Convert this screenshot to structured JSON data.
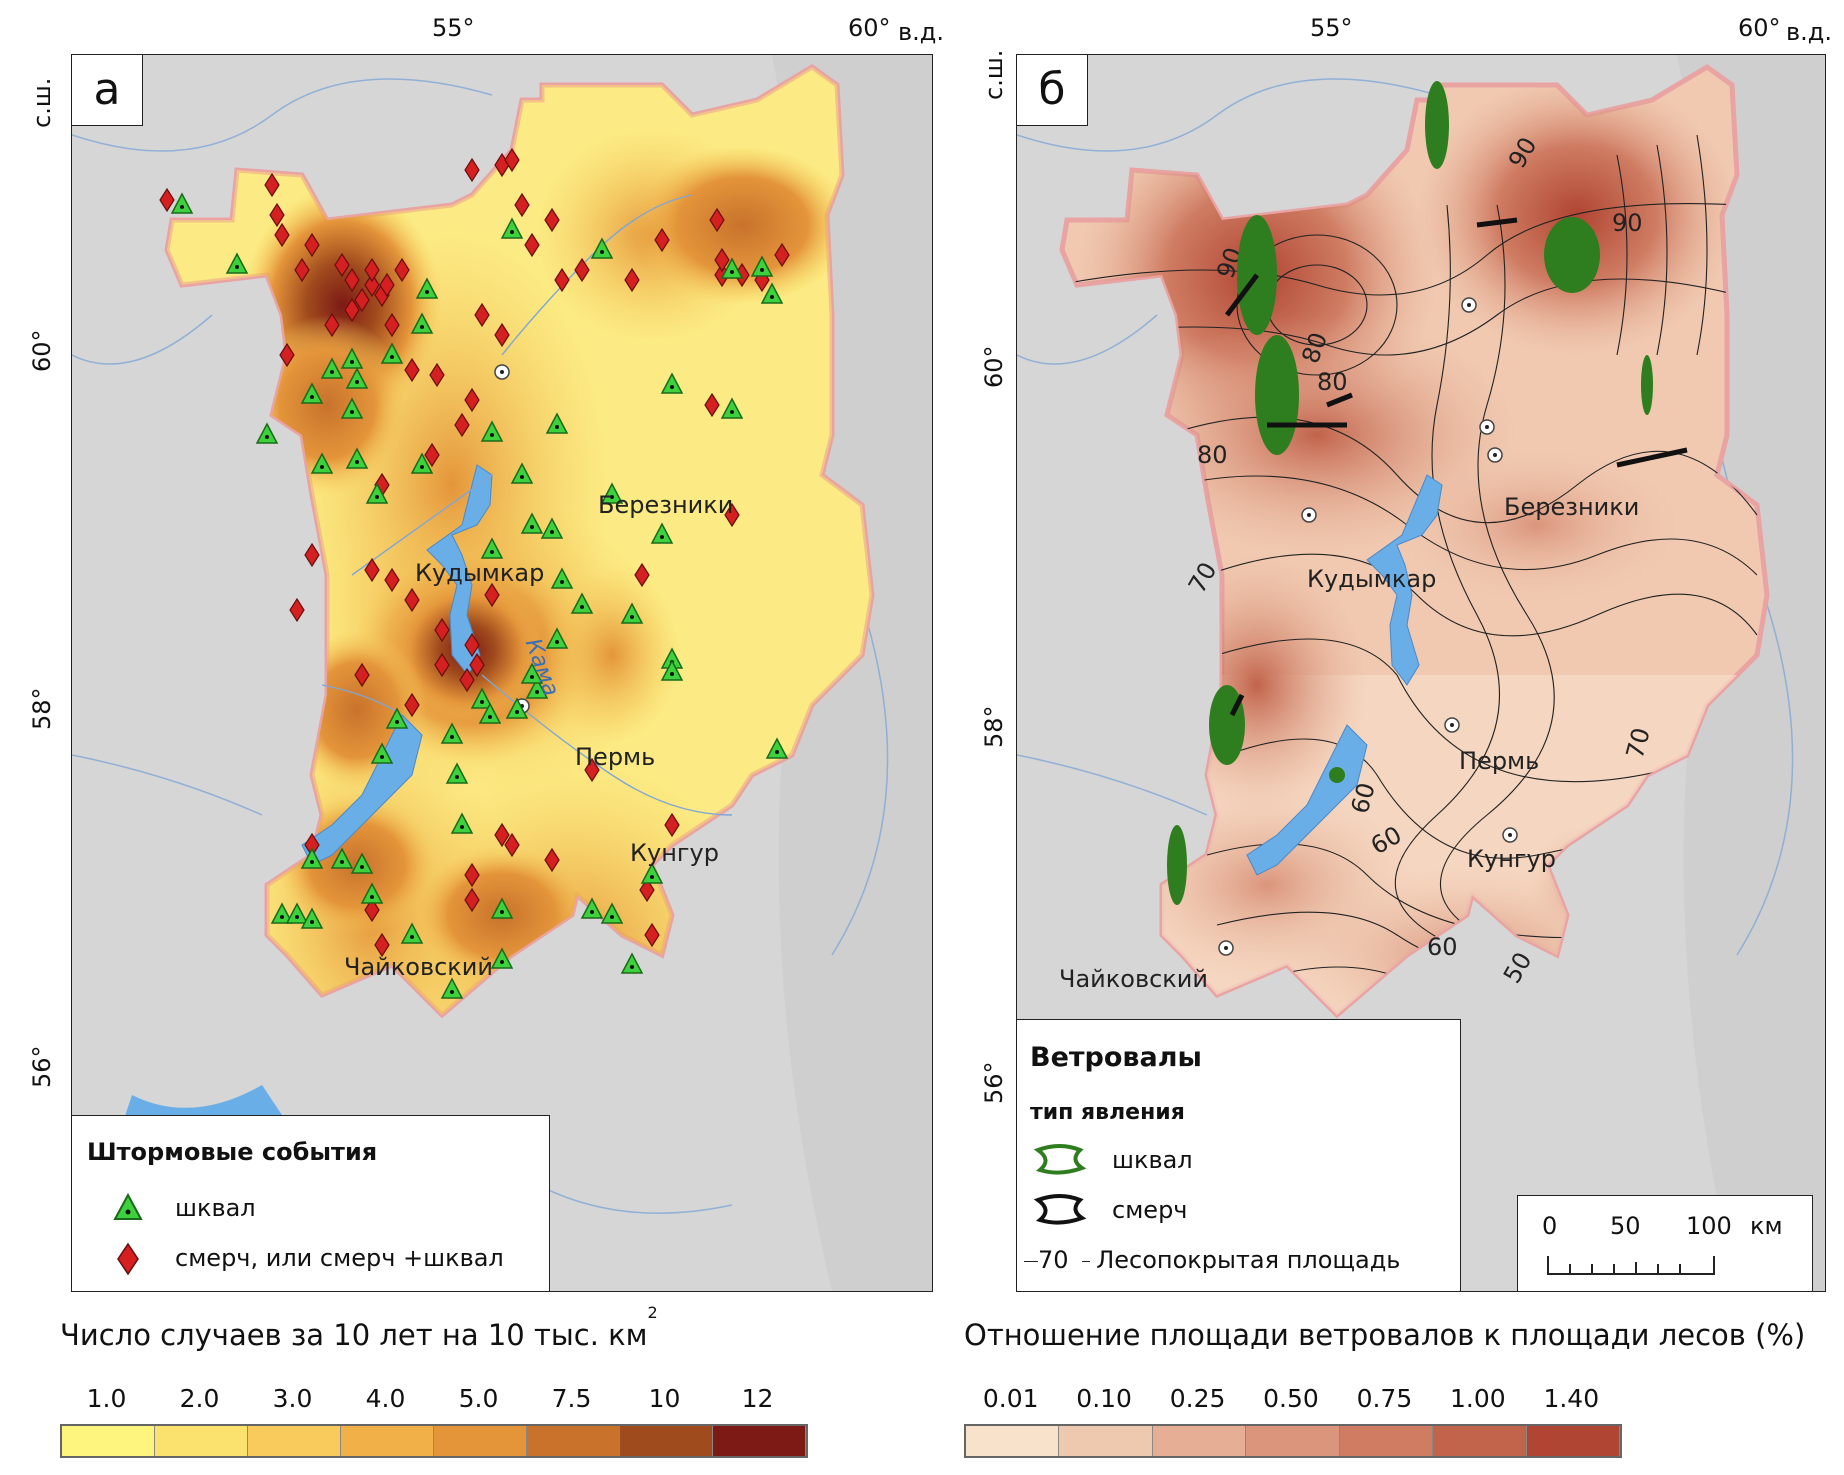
{
  "graticule": {
    "lon": [
      "55°",
      "60°"
    ],
    "lon_unit": "в.д.",
    "lat": [
      "60°",
      "58°",
      "56°"
    ],
    "lat_unit": "с.ш."
  },
  "cities": [
    "Березники",
    "Кудымкар",
    "Пермь",
    "Кунгур",
    "Чайковский"
  ],
  "river_label": "Кама",
  "panel_a": {
    "letter": "а",
    "legend_title": "Штормовые события",
    "legend_items": [
      "шквал",
      "смерч, или смерч +шквал"
    ],
    "scale_title": "Число случаев за 10 лет на 10 тыс. км",
    "scale_title_sup": "2",
    "scale_ticks": [
      "1.0",
      "2.0",
      "3.0",
      "4.0",
      "5.0",
      "7.5",
      "10",
      "12"
    ],
    "scale_colors": [
      "#fdf57e",
      "#fbe16d",
      "#f8cb5c",
      "#f2b148",
      "#e4953a",
      "#c8722c",
      "#a04b1d",
      "#7d1a16"
    ]
  },
  "panel_b": {
    "letter": "б",
    "legend_title": "Ветровалы",
    "legend_subtitle": "тип явления",
    "legend_items": [
      "шквал",
      "смерч"
    ],
    "isoline_sample": "70",
    "isoline_label": "Лесопокрытая площадь",
    "isoline_values": [
      "90",
      "90",
      "90",
      "80",
      "80",
      "80",
      "70",
      "70",
      "60",
      "60",
      "60",
      "50"
    ],
    "scale_bar": {
      "ticks": [
        "0",
        "50",
        "100"
      ],
      "unit": "км"
    },
    "scale_title": "Отношение площади ветровалов к площади лесов (%)",
    "scale_ticks": [
      "0.01",
      "0.10",
      "0.25",
      "0.50",
      "0.75",
      "1.00",
      "1.40"
    ],
    "scale_colors": [
      "#f8e2cc",
      "#efc8b0",
      "#e6ae95",
      "#db957c",
      "#cf7c63",
      "#c2634b",
      "#b04533"
    ]
  }
}
